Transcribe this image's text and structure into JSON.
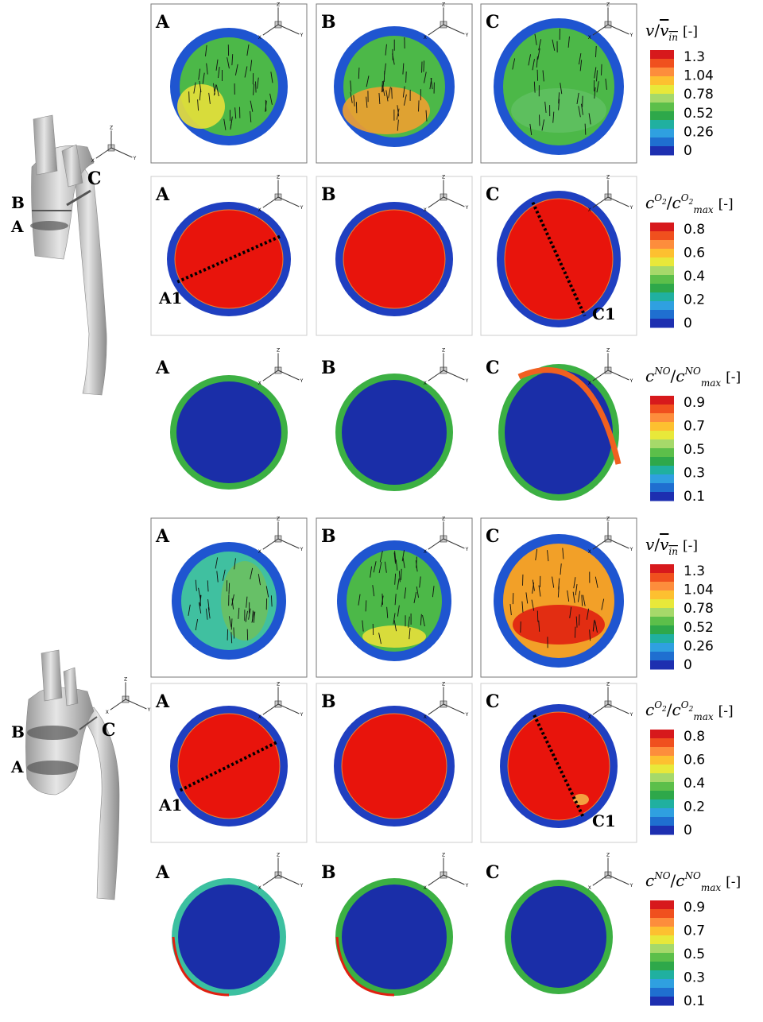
{
  "axis_labels": [
    "X",
    "Y",
    "Z"
  ],
  "groups": [
    {
      "model": {
        "section_labels": [
          "B",
          "A"
        ],
        "view_label": "C"
      },
      "rows": [
        {
          "panels": [
            {
              "label": "A"
            },
            {
              "label": "B"
            },
            {
              "label": "C"
            }
          ],
          "legend": {
            "title": {
              "symbol": "v",
              "separator": "/",
              "reference_symbol": "v",
              "reference_subscript": "in",
              "reference_overline": true,
              "unit": "[-]"
            },
            "ticks": [
              1.3,
              1.04,
              0.78,
              0.52,
              0.26,
              0
            ]
          }
        },
        {
          "panels": [
            {
              "label": "A",
              "section_label": "A1"
            },
            {
              "label": "B"
            },
            {
              "label": "C",
              "section_label": "C1"
            }
          ],
          "legend": {
            "title": {
              "symbol": "c",
              "superscript": "O",
              "superscript_subscript": "2",
              "separator": "/",
              "reference_symbol": "c",
              "reference_superscript": "O",
              "reference_superscript_subscript": "2",
              "reference_subscript": "max",
              "unit": "[-]"
            },
            "ticks": [
              0.8,
              0.6,
              0.4,
              0.2,
              0
            ]
          }
        },
        {
          "panels": [
            {
              "label": "A"
            },
            {
              "label": "B"
            },
            {
              "label": "C"
            }
          ],
          "legend": {
            "title": {
              "symbol": "c",
              "superscript": "NO",
              "separator": "/",
              "reference_symbol": "c",
              "reference_superscript": "NO",
              "reference_subscript": "max",
              "unit": "[-]"
            },
            "ticks": [
              0.9,
              0.7,
              0.5,
              0.3,
              0.1
            ]
          }
        }
      ]
    },
    {
      "model": {
        "section_labels": [
          "B",
          "A"
        ],
        "view_label": "C"
      },
      "rows": [
        {
          "panels": [
            {
              "label": "A"
            },
            {
              "label": "B"
            },
            {
              "label": "C"
            }
          ],
          "legend": {
            "title": {
              "symbol": "v",
              "separator": "/",
              "reference_symbol": "v",
              "reference_subscript": "in",
              "reference_overline": true,
              "unit": "[-]"
            },
            "ticks": [
              1.3,
              1.04,
              0.78,
              0.52,
              0.26,
              0
            ]
          }
        },
        {
          "panels": [
            {
              "label": "A",
              "section_label": "A1"
            },
            {
              "label": "B"
            },
            {
              "label": "C",
              "section_label": "C1"
            }
          ],
          "legend": {
            "title": {
              "symbol": "c",
              "superscript": "O",
              "superscript_subscript": "2",
              "separator": "/",
              "reference_symbol": "c",
              "reference_superscript": "O",
              "reference_superscript_subscript": "2",
              "reference_subscript": "max",
              "unit": "[-]"
            },
            "ticks": [
              0.8,
              0.6,
              0.4,
              0.2,
              0
            ]
          }
        },
        {
          "panels": [
            {
              "label": "A"
            },
            {
              "label": "B"
            },
            {
              "label": "C"
            }
          ],
          "legend": {
            "title": {
              "symbol": "c",
              "superscript": "NO",
              "separator": "/",
              "reference_symbol": "c",
              "reference_superscript": "NO",
              "reference_subscript": "max",
              "unit": "[-]"
            },
            "ticks": [
              0.9,
              0.7,
              0.5,
              0.3,
              0.1
            ]
          }
        }
      ]
    }
  ]
}
